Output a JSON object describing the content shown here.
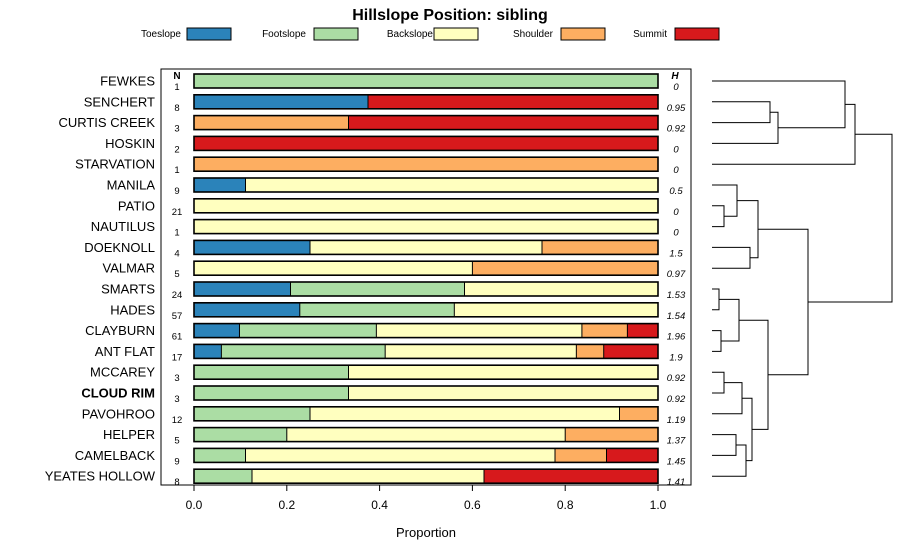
{
  "chart_data": {
    "type": "stacked-bar",
    "title": "Hillslope Position: sibling",
    "xlabel": "Proportion",
    "ylabel": "",
    "xlim": [
      0,
      1
    ],
    "x_ticks": [
      "0.0",
      "0.2",
      "0.4",
      "0.6",
      "0.8",
      "1.0"
    ],
    "n_header": "N",
    "h_header": "H",
    "highlight": "CLOUD RIM",
    "legend": [
      {
        "name": "Toeslope",
        "color": "#2b83ba"
      },
      {
        "name": "Footslope",
        "color": "#abdda4"
      },
      {
        "name": "Backslope",
        "color": "#ffffbf"
      },
      {
        "name": "Shoulder",
        "color": "#fdae61"
      },
      {
        "name": "Summit",
        "color": "#d7191c"
      }
    ],
    "rows": [
      {
        "label": "FEWKES",
        "n": "1",
        "h": "0",
        "values": [
          0,
          1,
          0,
          0,
          0
        ]
      },
      {
        "label": "SENCHERT",
        "n": "8",
        "h": "0.95",
        "values": [
          0.375,
          0,
          0,
          0,
          0.625
        ]
      },
      {
        "label": "CURTIS CREEK",
        "n": "3",
        "h": "0.92",
        "values": [
          0,
          0,
          0,
          0.333,
          0.667
        ]
      },
      {
        "label": "HOSKIN",
        "n": "2",
        "h": "0",
        "values": [
          0,
          0,
          0,
          0,
          1
        ]
      },
      {
        "label": "STARVATION",
        "n": "1",
        "h": "0",
        "values": [
          0,
          0,
          0,
          1,
          0
        ]
      },
      {
        "label": "MANILA",
        "n": "9",
        "h": "0.5",
        "values": [
          0.111,
          0,
          0.889,
          0,
          0
        ]
      },
      {
        "label": "PATIO",
        "n": "21",
        "h": "0",
        "values": [
          0,
          0,
          1,
          0,
          0
        ]
      },
      {
        "label": "NAUTILUS",
        "n": "1",
        "h": "0",
        "values": [
          0,
          0,
          1,
          0,
          0
        ]
      },
      {
        "label": "DOEKNOLL",
        "n": "4",
        "h": "1.5",
        "values": [
          0.25,
          0,
          0.5,
          0.25,
          0
        ]
      },
      {
        "label": "VALMAR",
        "n": "5",
        "h": "0.97",
        "values": [
          0,
          0,
          0.6,
          0.4,
          0
        ]
      },
      {
        "label": "SMARTS",
        "n": "24",
        "h": "1.53",
        "values": [
          0.208,
          0.375,
          0.417,
          0,
          0
        ]
      },
      {
        "label": "HADES",
        "n": "57",
        "h": "1.54",
        "values": [
          0.228,
          0.333,
          0.439,
          0,
          0
        ]
      },
      {
        "label": "CLAYBURN",
        "n": "61",
        "h": "1.96",
        "values": [
          0.098,
          0.295,
          0.443,
          0.098,
          0.066
        ]
      },
      {
        "label": "ANT FLAT",
        "n": "17",
        "h": "1.9",
        "values": [
          0.059,
          0.353,
          0.412,
          0.059,
          0.117
        ]
      },
      {
        "label": "MCCAREY",
        "n": "3",
        "h": "0.92",
        "values": [
          0,
          0.333,
          0.667,
          0,
          0
        ]
      },
      {
        "label": "CLOUD RIM",
        "n": "3",
        "h": "0.92",
        "values": [
          0,
          0.333,
          0.667,
          0,
          0
        ]
      },
      {
        "label": "PAVOHROO",
        "n": "12",
        "h": "1.19",
        "values": [
          0,
          0.25,
          0.667,
          0.083,
          0
        ]
      },
      {
        "label": "HELPER",
        "n": "5",
        "h": "1.37",
        "values": [
          0,
          0.2,
          0.6,
          0.2,
          0
        ]
      },
      {
        "label": "CAMELBACK",
        "n": "9",
        "h": "1.45",
        "values": [
          0,
          0.111,
          0.667,
          0.111,
          0.111
        ]
      },
      {
        "label": "YEATES HOLLOW",
        "n": "8",
        "h": "1.41",
        "values": [
          0,
          0.125,
          0.5,
          0,
          0.375
        ]
      }
    ]
  }
}
